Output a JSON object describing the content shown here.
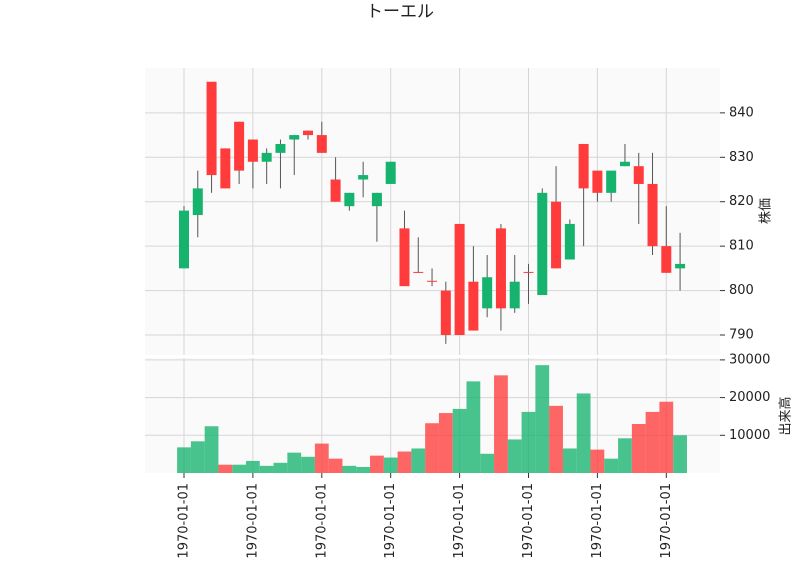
{
  "chart_data": {
    "type": "candlestick",
    "title": "トーエル",
    "ylabel": "株価",
    "volume_ylabel": "出来高",
    "categories": [
      "1970-01-01",
      null,
      null,
      null,
      null,
      "1970-01-01",
      null,
      null,
      null,
      null,
      "1970-01-01",
      null,
      null,
      null,
      null,
      "1970-01-01",
      null,
      null,
      null,
      null,
      "1970-01-01",
      null,
      null,
      null,
      null,
      "1970-01-01",
      null,
      null,
      null,
      null,
      "1970-01-01",
      null,
      null,
      null,
      null,
      "1970-01-01",
      null
    ],
    "open": [
      805,
      817,
      847,
      832,
      838,
      834,
      829,
      831,
      834,
      836,
      835,
      825,
      819,
      825,
      819,
      824,
      814,
      804.2,
      802.2,
      800,
      815,
      802,
      796,
      814,
      796,
      804.2,
      799,
      820,
      807,
      833,
      827,
      822,
      828,
      828,
      824,
      810,
      805
    ],
    "high": [
      819,
      827,
      847,
      832,
      838,
      834,
      832,
      834,
      835,
      836,
      838,
      830,
      822,
      829,
      822,
      829,
      818,
      812,
      805,
      802,
      815,
      810,
      808,
      815,
      808,
      806,
      823,
      828,
      816,
      833,
      827,
      827,
      833,
      831,
      831,
      819,
      813
    ],
    "low": [
      805,
      812,
      822,
      823,
      824,
      823,
      824,
      823,
      826,
      834,
      831,
      820,
      818,
      821,
      811,
      824,
      801,
      804,
      801,
      788,
      790,
      791,
      794,
      791,
      795,
      797,
      799,
      805,
      807,
      810,
      820,
      820,
      828,
      815,
      808,
      804,
      800
    ],
    "close": [
      818,
      823,
      826,
      823,
      827,
      829,
      831,
      833,
      835,
      835,
      831,
      820,
      822,
      826,
      822,
      829,
      801,
      804,
      802,
      790,
      790,
      791,
      803,
      796,
      802,
      804,
      822,
      805,
      815,
      823,
      822,
      827,
      829,
      824,
      810,
      804,
      806
    ],
    "volume": [
      6800,
      8400,
      12400,
      2200,
      2200,
      3200,
      1900,
      2700,
      5400,
      4300,
      7800,
      3800,
      1900,
      1600,
      4600,
      4100,
      5700,
      6500,
      13200,
      15900,
      17000,
      24300,
      5100,
      25900,
      8900,
      16200,
      28600,
      17800,
      6500,
      21100,
      6200,
      3800,
      9200,
      13000,
      16200,
      18900,
      10000
    ],
    "ylim": [
      785.5,
      850.1
    ],
    "yticks": [
      790,
      800,
      810,
      820,
      830,
      840
    ],
    "volume_ylim": [
      0,
      30500
    ],
    "volume_yticks": [
      10000,
      20000,
      30000
    ],
    "up_color": "#16b36e",
    "down_color": "#ff3b3b",
    "grid": true
  }
}
